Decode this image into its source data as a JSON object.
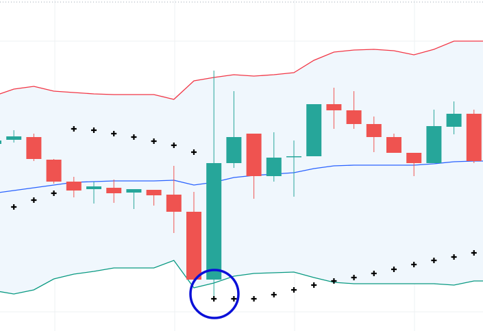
{
  "chart_data": {
    "type": "candlestick",
    "categories": [
      null,
      null,
      null,
      null,
      null,
      null,
      null,
      null,
      null,
      null,
      null,
      null,
      null,
      null,
      null,
      null,
      null,
      null,
      null,
      null,
      null,
      null,
      null,
      null,
      null
    ],
    "open": [
      273,
      279,
      283,
      250,
      218,
      207,
      209,
      202,
      206,
      199,
      174,
      75,
      245,
      288,
      226,
      254,
      255,
      331,
      322,
      302,
      283,
      260,
      245,
      298,
      317
    ],
    "high": [
      283,
      293,
      288,
      251,
      225,
      218,
      221,
      207,
      206,
      241,
      203,
      380,
      350,
      288,
      290,
      278,
      331,
      355,
      350,
      313,
      288,
      260,
      323,
      335,
      323
    ],
    "low": [
      271,
      275,
      248,
      215,
      195,
      186,
      187,
      178,
      183,
      143,
      75,
      48,
      238,
      193,
      218,
      196,
      255,
      295,
      295,
      261,
      260,
      226,
      245,
      287,
      245
    ],
    "close": [
      278,
      284,
      251,
      218,
      205,
      211,
      201,
      207,
      198,
      174,
      75,
      245,
      283,
      226,
      253,
      255,
      331,
      322,
      302,
      283,
      260,
      245,
      299,
      317,
      248
    ],
    "up_color": "#26a69a",
    "down_color": "#ef5350",
    "series": [
      {
        "color": "#f23645",
        "values": [
          343,
          353,
          357,
          350,
          348,
          346,
          345,
          345,
          345,
          338,
          365,
          370,
          374,
          372,
          374,
          377,
          395,
          407,
          410,
          411,
          409,
          403,
          411,
          423,
          423
        ]
      },
      {
        "color": "#2962ff",
        "values": [
          201,
          205,
          209,
          213,
          217,
          218,
          219,
          219,
          219,
          220,
          213,
          217,
          224,
          227,
          229,
          231,
          237,
          241,
          242,
          242,
          242,
          242,
          244,
          247,
          248
        ]
      },
      {
        "color": "#089981",
        "values": [
          59,
          54,
          60,
          76,
          83,
          87,
          92,
          92,
          92,
          103,
          63,
          70,
          80,
          84,
          85,
          86,
          78,
          71,
          69,
          69,
          69,
          69,
          69,
          67,
          73
        ]
      }
    ],
    "band_fill": "#f0f7fd",
    "sar": {
      "color": "#000000",
      "values": [
        null,
        181,
        191,
        201,
        295,
        293,
        288,
        283,
        277,
        271,
        261,
        47,
        47,
        47,
        53,
        60,
        67,
        73,
        78,
        84,
        90,
        97,
        103,
        108,
        114
      ]
    },
    "ylim": [
      0,
      483
    ]
  }
}
